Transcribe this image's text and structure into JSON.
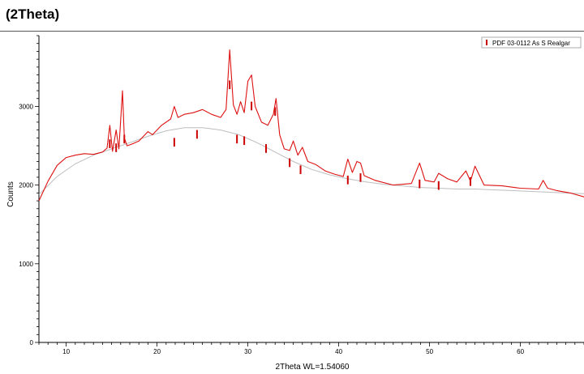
{
  "header": {
    "title": "(2Theta)"
  },
  "chart_data": {
    "type": "line",
    "title": "(2Theta)",
    "xlabel": "2Theta WL=1.54060",
    "ylabel": "Counts",
    "xlim": [
      7,
      67
    ],
    "ylim": [
      0,
      3900
    ],
    "x_ticks": [
      10,
      20,
      30,
      40,
      50,
      60
    ],
    "y_ticks": [
      0,
      1000,
      2000,
      3000
    ],
    "x_tick_labels": [
      "10",
      "20",
      "30",
      "40",
      "50",
      "60"
    ],
    "y_tick_labels": [
      "0",
      "1000",
      "2000",
      "3000"
    ],
    "grid": false,
    "legend_position": "top-right",
    "colors": {
      "pattern": "#dd1111",
      "background_fit": "#bdbdbd",
      "reference": "#cc0000"
    },
    "series": [
      {
        "kind": "pattern",
        "x": [
          7.0,
          8.0,
          9.0,
          10.0,
          11.0,
          12.0,
          13.0,
          14.0,
          14.5,
          14.8,
          15.1,
          15.5,
          15.8,
          16.2,
          16.4,
          16.7,
          17.2,
          18.0,
          19.0,
          19.5,
          20.5,
          21.5,
          21.9,
          22.3,
          23.0,
          24.0,
          25.0,
          26.0,
          27.0,
          27.6,
          28.0,
          28.4,
          28.8,
          29.2,
          29.6,
          30.0,
          30.4,
          30.8,
          31.5,
          32.2,
          32.8,
          33.1,
          33.5,
          34.0,
          34.6,
          35.0,
          35.5,
          36.0,
          36.6,
          37.5,
          38.5,
          39.5,
          40.5,
          41.0,
          41.5,
          42.0,
          42.4,
          42.8,
          44.0,
          46.0,
          48.0,
          48.9,
          49.5,
          50.5,
          51.0,
          52.0,
          53.0,
          54.0,
          54.5,
          55.0,
          56.0,
          58.0,
          60.0,
          62.0,
          62.5,
          63.0,
          64.0,
          65.5,
          67.0
        ],
        "y": [
          1800,
          2050,
          2250,
          2350,
          2380,
          2400,
          2390,
          2420,
          2470,
          2760,
          2430,
          2700,
          2460,
          3200,
          2600,
          2500,
          2520,
          2560,
          2680,
          2640,
          2760,
          2840,
          3000,
          2860,
          2900,
          2920,
          2960,
          2900,
          2860,
          2960,
          3720,
          3020,
          2900,
          3060,
          2920,
          3320,
          3400,
          3000,
          2800,
          2760,
          2900,
          3100,
          2640,
          2460,
          2440,
          2560,
          2380,
          2480,
          2300,
          2260,
          2180,
          2140,
          2110,
          2330,
          2160,
          2300,
          2280,
          2120,
          2060,
          2000,
          2020,
          2280,
          2060,
          2040,
          2150,
          2080,
          2040,
          2180,
          2050,
          2240,
          2000,
          1990,
          1960,
          1950,
          2060,
          1960,
          1930,
          1900,
          1850
        ]
      },
      {
        "kind": "background_fit",
        "x": [
          7,
          9,
          11,
          13,
          15,
          17,
          19,
          21,
          23,
          25,
          27,
          29,
          31,
          33,
          35,
          37,
          39,
          41,
          43,
          45,
          47,
          49,
          51,
          53,
          55,
          57,
          59,
          61,
          63,
          65,
          67
        ],
        "y": [
          1880,
          2110,
          2270,
          2380,
          2460,
          2540,
          2620,
          2690,
          2730,
          2730,
          2700,
          2640,
          2540,
          2420,
          2300,
          2200,
          2130,
          2080,
          2040,
          2010,
          1990,
          1970,
          1960,
          1950,
          1950,
          1940,
          1930,
          1920,
          1910,
          1900,
          1890
        ]
      }
    ],
    "reference_pattern": {
      "name": "PDF 03-0112 As S Realgar",
      "peaks_x": [
        14.8,
        15.5,
        16.4,
        21.9,
        24.4,
        28.0,
        28.8,
        29.6,
        30.4,
        32.0,
        33.0,
        34.6,
        35.8,
        41.0,
        42.4,
        48.9,
        51.0,
        54.5
      ],
      "peaks_height": [
        2580,
        2530,
        2640,
        2600,
        2700,
        3330,
        2640,
        2620,
        3060,
        2520,
        2990,
        2340,
        2250,
        2120,
        2150,
        2070,
        2050,
        2100
      ]
    }
  }
}
